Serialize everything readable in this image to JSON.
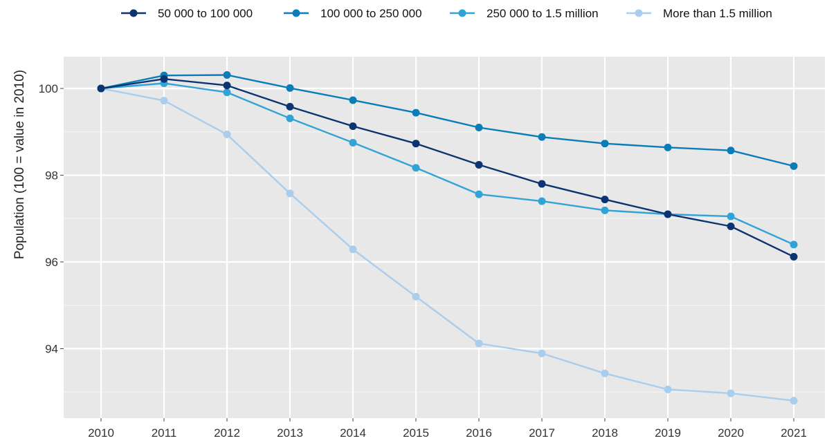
{
  "chart_data": {
    "type": "line",
    "title": "",
    "xlabel": "",
    "ylabel": "Population (100 = value in 2010)",
    "x": [
      2010,
      2011,
      2012,
      2013,
      2014,
      2015,
      2016,
      2017,
      2018,
      2019,
      2020,
      2021
    ],
    "xticks": [
      "2010",
      "2011",
      "2012",
      "2013",
      "2014",
      "2015",
      "2016",
      "2017",
      "2018",
      "2019",
      "2020",
      "2021"
    ],
    "yticks": [
      94,
      96,
      98,
      100
    ],
    "ylim": [
      92.6,
      100.7
    ],
    "grid": true,
    "legend_position": "top",
    "series": [
      {
        "name": "50 000 to 100 000",
        "color": "#0b3470",
        "values": [
          100.0,
          100.22,
          100.07,
          99.58,
          99.13,
          98.73,
          98.24,
          97.8,
          97.44,
          97.1,
          96.82,
          96.12
        ]
      },
      {
        "name": "100 000 to 250 000",
        "color": "#0a7db8",
        "values": [
          100.0,
          100.3,
          100.31,
          100.01,
          99.73,
          99.44,
          99.1,
          98.88,
          98.73,
          98.64,
          98.57,
          98.21
        ]
      },
      {
        "name": "250 000 to 1.5 million",
        "color": "#31a3d6",
        "values": [
          100.0,
          100.12,
          99.91,
          99.31,
          98.75,
          98.17,
          97.56,
          97.4,
          97.19,
          97.1,
          97.05,
          96.4
        ]
      },
      {
        "name": "More than 1.5 million",
        "color": "#a9cdec",
        "values": [
          100.0,
          99.72,
          98.94,
          97.58,
          96.29,
          95.2,
          94.12,
          93.89,
          93.43,
          93.06,
          92.97,
          92.8
        ]
      }
    ]
  }
}
